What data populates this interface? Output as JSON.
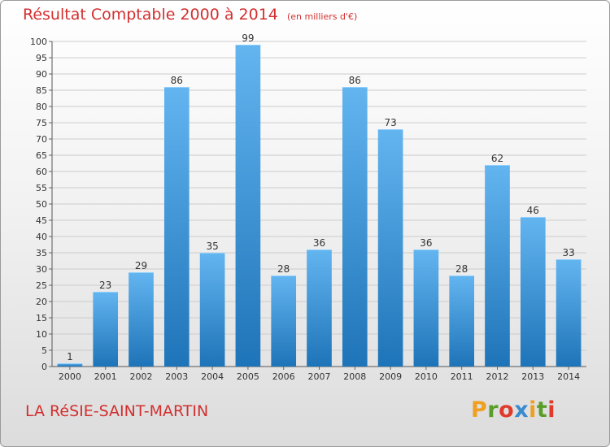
{
  "chart_data": {
    "type": "bar",
    "title": "Résultat Comptable 2000 à 2014",
    "subtitle": "(en milliers d'€)",
    "categories": [
      "2000",
      "2001",
      "2002",
      "2003",
      "2004",
      "2005",
      "2006",
      "2007",
      "2008",
      "2009",
      "2010",
      "2011",
      "2012",
      "2013",
      "2014"
    ],
    "values": [
      1,
      23,
      29,
      86,
      35,
      99,
      28,
      36,
      86,
      73,
      36,
      28,
      62,
      46,
      33
    ],
    "ylim": [
      0,
      100
    ],
    "ytick_step": 5,
    "grid": true,
    "xlabel": "",
    "ylabel": ""
  },
  "place_name": "LA RéSIE-SAINT-MARTIN",
  "logo_text": "Proxiti",
  "colors": {
    "title": "#d32f2f",
    "bar_top": "#63b5f0",
    "bar_bottom": "#1e74b8",
    "logo_letters": [
      "#f0a020",
      "#5a9e2a",
      "#e03a2a",
      "#3a8ad0",
      "#f0a020",
      "#5a9e2a",
      "#e03a2a"
    ]
  }
}
